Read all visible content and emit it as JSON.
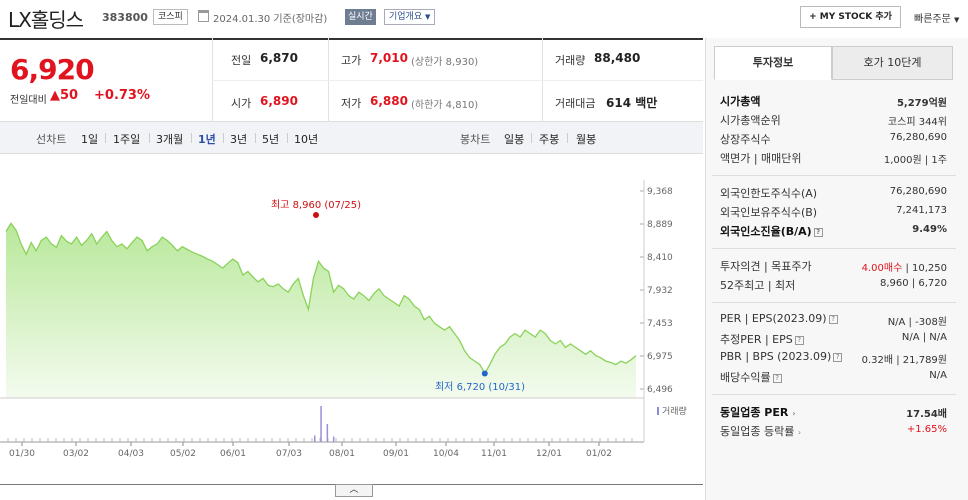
{
  "header": {
    "title": "LX홀딩스",
    "code": "383800",
    "market": "코스피",
    "date_text": "2024.01.30  기준(장마감)",
    "realtime": "실시간",
    "overview": "기업개요",
    "mystock": "+ MY STOCK 추가",
    "quick_order": "빠른주문"
  },
  "summary": {
    "price": "6,920",
    "diff_label": "전일대비",
    "diff": "▲50",
    "pct": "+0.73%",
    "prev_close_label": "전일",
    "prev_close": "6,870",
    "high_label": "고가",
    "high": "7,010",
    "upper_limit": "(상한가 8,930)",
    "volume_label": "거래량",
    "volume": "88,480",
    "open_label": "시가",
    "open": "6,890",
    "low_label": "저가",
    "low": "6,880",
    "lower_limit": "(하한가 4,810)",
    "amount_label": "거래대금",
    "amount": "614 백만"
  },
  "period_bar": {
    "line_label": "선차트",
    "line_items": [
      "1일",
      "1주일",
      "3개월",
      "1년",
      "3년",
      "5년",
      "10년"
    ],
    "active": "1년",
    "candle_label": "봉차트",
    "candle_items": [
      "일봉",
      "주봉",
      "월봉"
    ]
  },
  "chart_data": {
    "type": "area",
    "y_ticks": [
      "9,368",
      "8,889",
      "8,410",
      "7,932",
      "7,453",
      "6,975",
      "6,496"
    ],
    "ylim": [
      6496,
      9368
    ],
    "x_ticks": [
      "01/30",
      "03/02",
      "04/03",
      "05/02",
      "06/01",
      "07/03",
      "08/01",
      "09/01",
      "10/04",
      "11/01",
      "12/01",
      "01/02"
    ],
    "high_annotation": "최고 8,960 (07/25)",
    "low_annotation": "최저 6,720 (10/31)",
    "volume_label": "거래량",
    "line_color": "#8ad25a",
    "fill_color": "#d9f3c9",
    "values": [
      8780,
      8900,
      8800,
      8600,
      8450,
      8620,
      8500,
      8650,
      8700,
      8600,
      8550,
      8720,
      8640,
      8600,
      8700,
      8580,
      8650,
      8750,
      8600,
      8700,
      8780,
      8650,
      8560,
      8600,
      8530,
      8620,
      8700,
      8650,
      8500,
      8560,
      8600,
      8700,
      8650,
      8580,
      8500,
      8560,
      8520,
      8480,
      8450,
      8420,
      8380,
      8350,
      8300,
      8250,
      8320,
      8380,
      8330,
      8150,
      8200,
      8120,
      8050,
      8100,
      8000,
      7980,
      8020,
      7950,
      7900,
      8020,
      8100,
      7850,
      7650,
      8100,
      8350,
      8250,
      8200,
      7900,
      8000,
      7950,
      7850,
      7800,
      7900,
      7850,
      7780,
      7880,
      7950,
      7850,
      7800,
      7750,
      7700,
      7850,
      7800,
      7700,
      7650,
      7500,
      7550,
      7450,
      7400,
      7350,
      7400,
      7300,
      7200,
      7050,
      6950,
      6900,
      6850,
      6720,
      6850,
      7000,
      7100,
      7150,
      7250,
      7300,
      7250,
      7350,
      7300,
      7250,
      7350,
      7300,
      7200,
      7150,
      7200,
      7100,
      7150,
      7100,
      7050,
      7000,
      7050,
      6980,
      6950,
      6900,
      6880,
      6850,
      6900,
      6870,
      6920,
      6980
    ],
    "volume_spikes": [
      {
        "pos": 0.61,
        "value": 1.0
      },
      {
        "pos": 0.62,
        "value": 0.5
      },
      {
        "pos": 0.6,
        "value": 0.18
      },
      {
        "pos": 0.63,
        "value": 0.15
      }
    ]
  },
  "right_panel": {
    "tab_active": "투자정보",
    "tab_other": "호가 10단계",
    "rows1": [
      {
        "label": "시가총액",
        "value": "5,279억원",
        "bold": true
      },
      {
        "label": "시가총액순위",
        "value": "코스피 344위"
      },
      {
        "label": "상장주식수",
        "value": "76,280,690"
      },
      {
        "label": "액면가 | 매매단위",
        "value": "1,000원 | 1주"
      }
    ],
    "rows2": [
      {
        "label": "외국인한도주식수(A)",
        "value": "76,280,690"
      },
      {
        "label": "외국인보유주식수(B)",
        "value": "7,241,173"
      },
      {
        "label": "외국인소진율(B/A)",
        "value": "9.49%",
        "bold": true
      }
    ],
    "rows3": [
      {
        "label": "투자의견 | 목표주가",
        "value_red": "4.00매수",
        "value": "10,250"
      },
      {
        "label": "52주최고 | 최저",
        "value": "8,960 | 6,720"
      }
    ],
    "rows4": [
      {
        "label": "PER | EPS(2023.09)",
        "v1": "N/A",
        "v2": "-308원"
      },
      {
        "label": "추정PER | EPS",
        "v1": "N/A",
        "v2": "N/A"
      },
      {
        "label": "PBR | BPS (2023.09)",
        "v1": "0.32배",
        "v2": "21,789원"
      },
      {
        "label": "배당수익률",
        "v1": "",
        "v2": "N/A"
      }
    ],
    "rows5": [
      {
        "label": "동일업종 PER",
        "value": "17.54배",
        "bold": true
      },
      {
        "label": "동일업종 등락률",
        "value": "+1.65%",
        "red": true
      }
    ]
  }
}
